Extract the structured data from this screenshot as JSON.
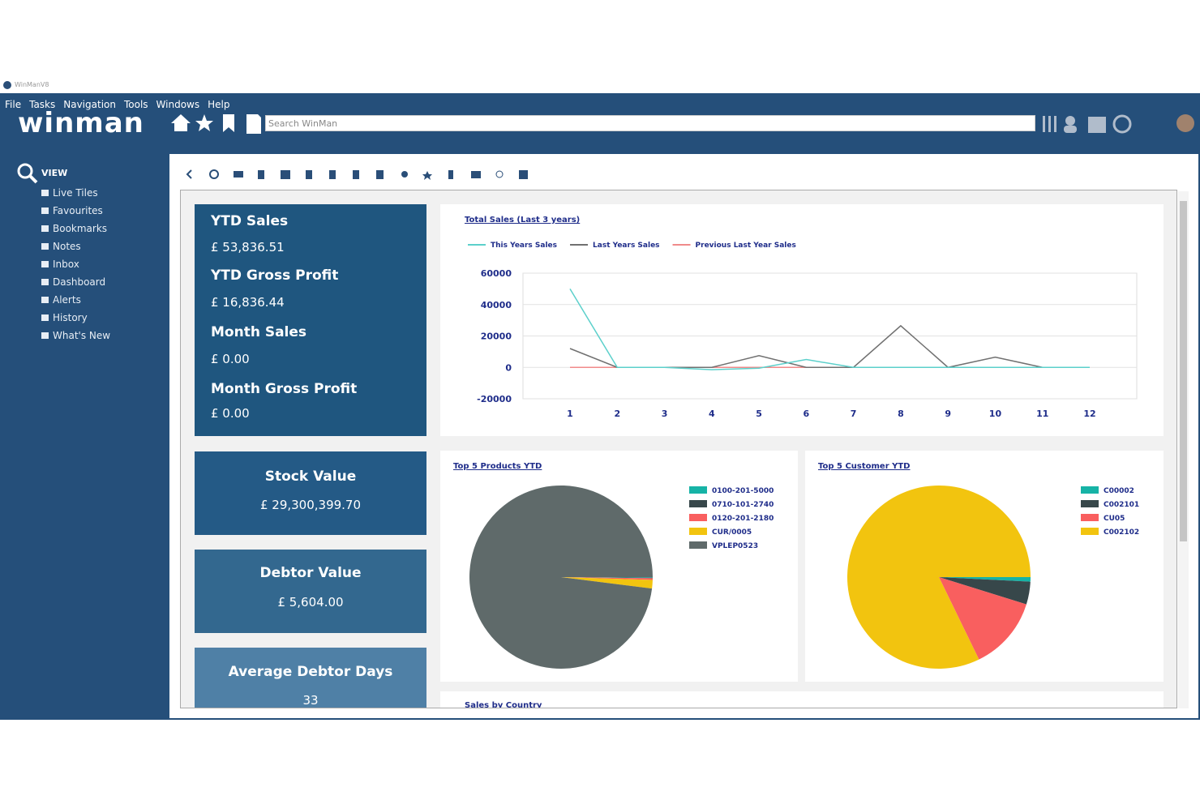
{
  "window_title": "WinManV8",
  "menu": [
    "File",
    "Tasks",
    "Navigation",
    "Tools",
    "Windows",
    "Help"
  ],
  "logo": "winman",
  "search_placeholder": "Search WinMan",
  "sidebar": {
    "heading": "VIEW",
    "items": [
      "Live Tiles",
      "Favourites",
      "Bookmarks",
      "Notes",
      "Inbox",
      "Dashboard",
      "Alerts",
      "History",
      "What's New"
    ]
  },
  "summary_tile": [
    {
      "label": "YTD Sales",
      "value": "£ 53,836.51"
    },
    {
      "label": "YTD Gross Profit",
      "value": "£ 16,836.44"
    },
    {
      "label": "Month Sales",
      "value": "£ 0.00"
    },
    {
      "label": "Month Gross Profit",
      "value": "£ 0.00"
    }
  ],
  "tiles": [
    {
      "label": "Stock Value",
      "value": "£ 29,300,399.70"
    },
    {
      "label": "Debtor Value",
      "value": "£ 5,604.00"
    },
    {
      "label": "Average Debtor Days",
      "value": "33"
    }
  ],
  "sales_by_country_title": "Sales by Country",
  "chart_data": [
    {
      "type": "line",
      "title": "Total Sales (Last 3 years)",
      "categories": [
        "1",
        "2",
        "3",
        "4",
        "5",
        "6",
        "7",
        "8",
        "9",
        "10",
        "11",
        "12"
      ],
      "series": [
        {
          "name": "This Years Sales",
          "color": "#5cd0cb",
          "values": [
            50000,
            0,
            0,
            -1500,
            -500,
            5000,
            0,
            0,
            0,
            0,
            0,
            0
          ]
        },
        {
          "name": "Last Years Sales",
          "color": "#707070",
          "values": [
            12000,
            0,
            0,
            0,
            7500,
            0,
            0,
            26500,
            0,
            6500,
            0,
            0
          ]
        },
        {
          "name": "Previous Last Year Sales",
          "color": "#f08a8a",
          "values": [
            0,
            0,
            0,
            0,
            0,
            0,
            0,
            0,
            0,
            0,
            0,
            0
          ]
        }
      ],
      "ylim": [
        -20000,
        60000
      ],
      "yticks": [
        -20000,
        0,
        20000,
        40000,
        60000
      ],
      "grid": true
    },
    {
      "type": "pie",
      "title": "Top 5 Products YTD",
      "categories": [
        "0100-201-5000",
        "0710-101-2740",
        "0120-201-2180",
        "CUR/0005",
        "VPLEP0523"
      ],
      "values": [
        0.1,
        0.1,
        0.3,
        1.5,
        98
      ],
      "colors": [
        "#16b3a6",
        "#37474a",
        "#f95f5f",
        "#f2c40f",
        "#5f6a6a"
      ]
    },
    {
      "type": "pie",
      "title": "Top 5 Customer YTD",
      "categories": [
        "C00002",
        "C002101",
        "CU05",
        "C002102"
      ],
      "values": [
        0.8,
        4,
        13,
        82.2
      ],
      "colors": [
        "#16b3a6",
        "#37474a",
        "#f95f5f",
        "#f2c40f"
      ]
    }
  ]
}
